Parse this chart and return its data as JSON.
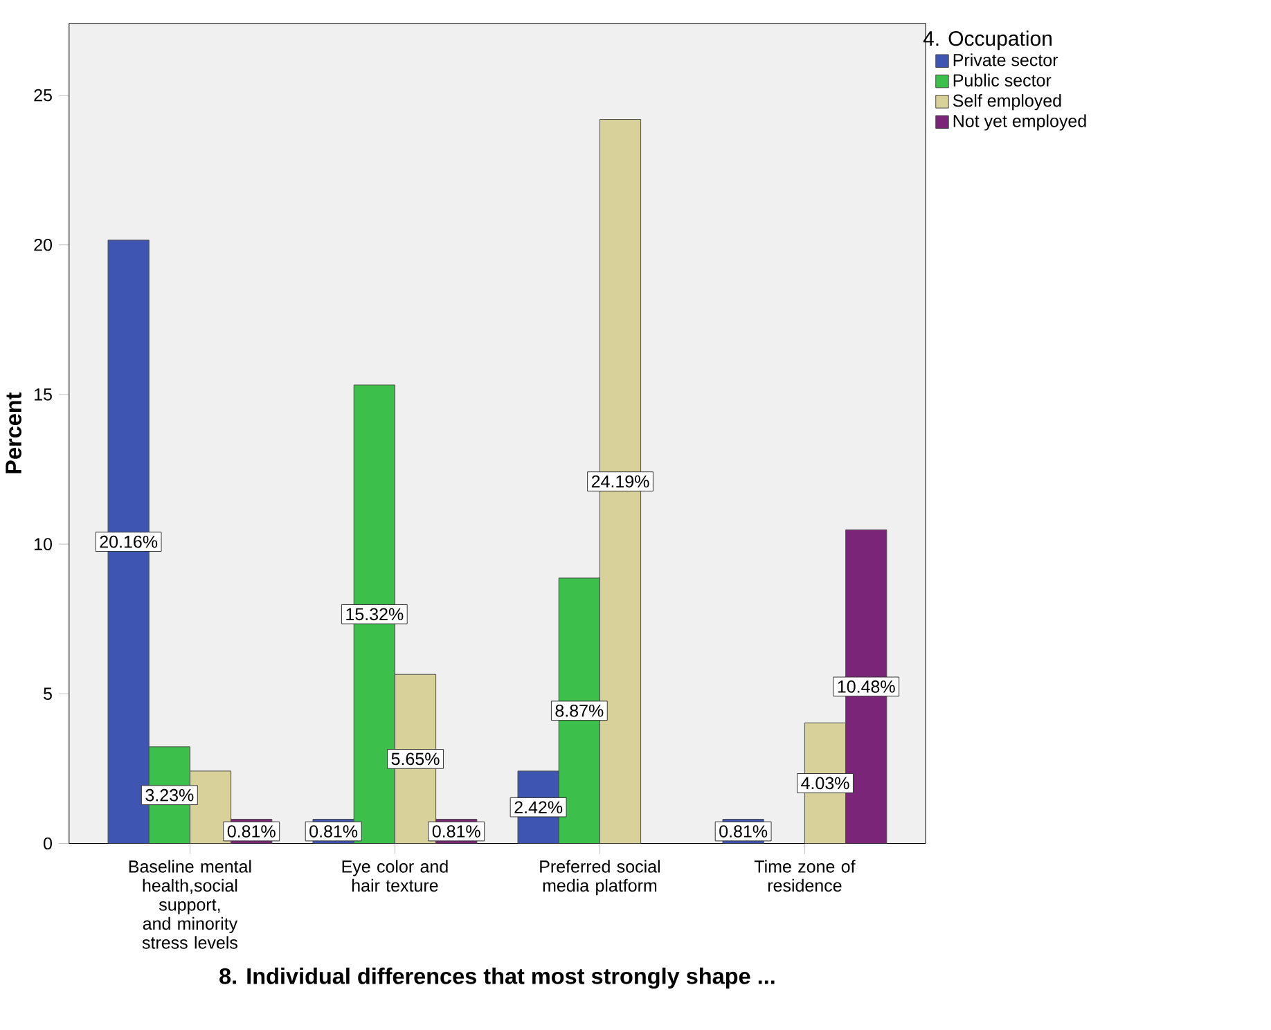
{
  "chart_data": {
    "type": "bar",
    "xlabel": "8. Individual differences that most strongly shape ...",
    "ylabel": "Percent",
    "legend_title": "4. Occupation",
    "categories": [
      "Baseline mental health,social support, and minority stress levels",
      "Eye color and hair texture",
      "Preferred social media platform",
      "Time zone of residence"
    ],
    "series": [
      {
        "name": "Private sector",
        "color": "#3e56b2",
        "values": [
          20.16,
          0.81,
          2.42,
          0.81
        ],
        "value_labels": [
          "20.16%",
          "0.81%",
          "2.42%",
          "0.81%"
        ]
      },
      {
        "name": "Public sector",
        "color": "#3dbf4b",
        "values": [
          3.23,
          15.32,
          8.87,
          null
        ],
        "value_labels": [
          "3.23%",
          "15.32%",
          "8.87%",
          null
        ]
      },
      {
        "name": "Self employed",
        "color": "#d8d29a",
        "values": [
          2.42,
          5.65,
          24.19,
          4.03
        ],
        "value_labels": [
          null,
          "5.65%",
          "24.19%",
          "4.03%"
        ]
      },
      {
        "name": "Not yet employed",
        "color": "#7a2577",
        "values": [
          0.81,
          0.81,
          null,
          10.48
        ],
        "value_labels": [
          "0.81%",
          "0.81%",
          null,
          "10.48%"
        ]
      }
    ],
    "ylim": [
      0,
      27.4
    ],
    "yticks": [
      0,
      5,
      10,
      15,
      20,
      25
    ],
    "grid": false,
    "legend": "right"
  }
}
